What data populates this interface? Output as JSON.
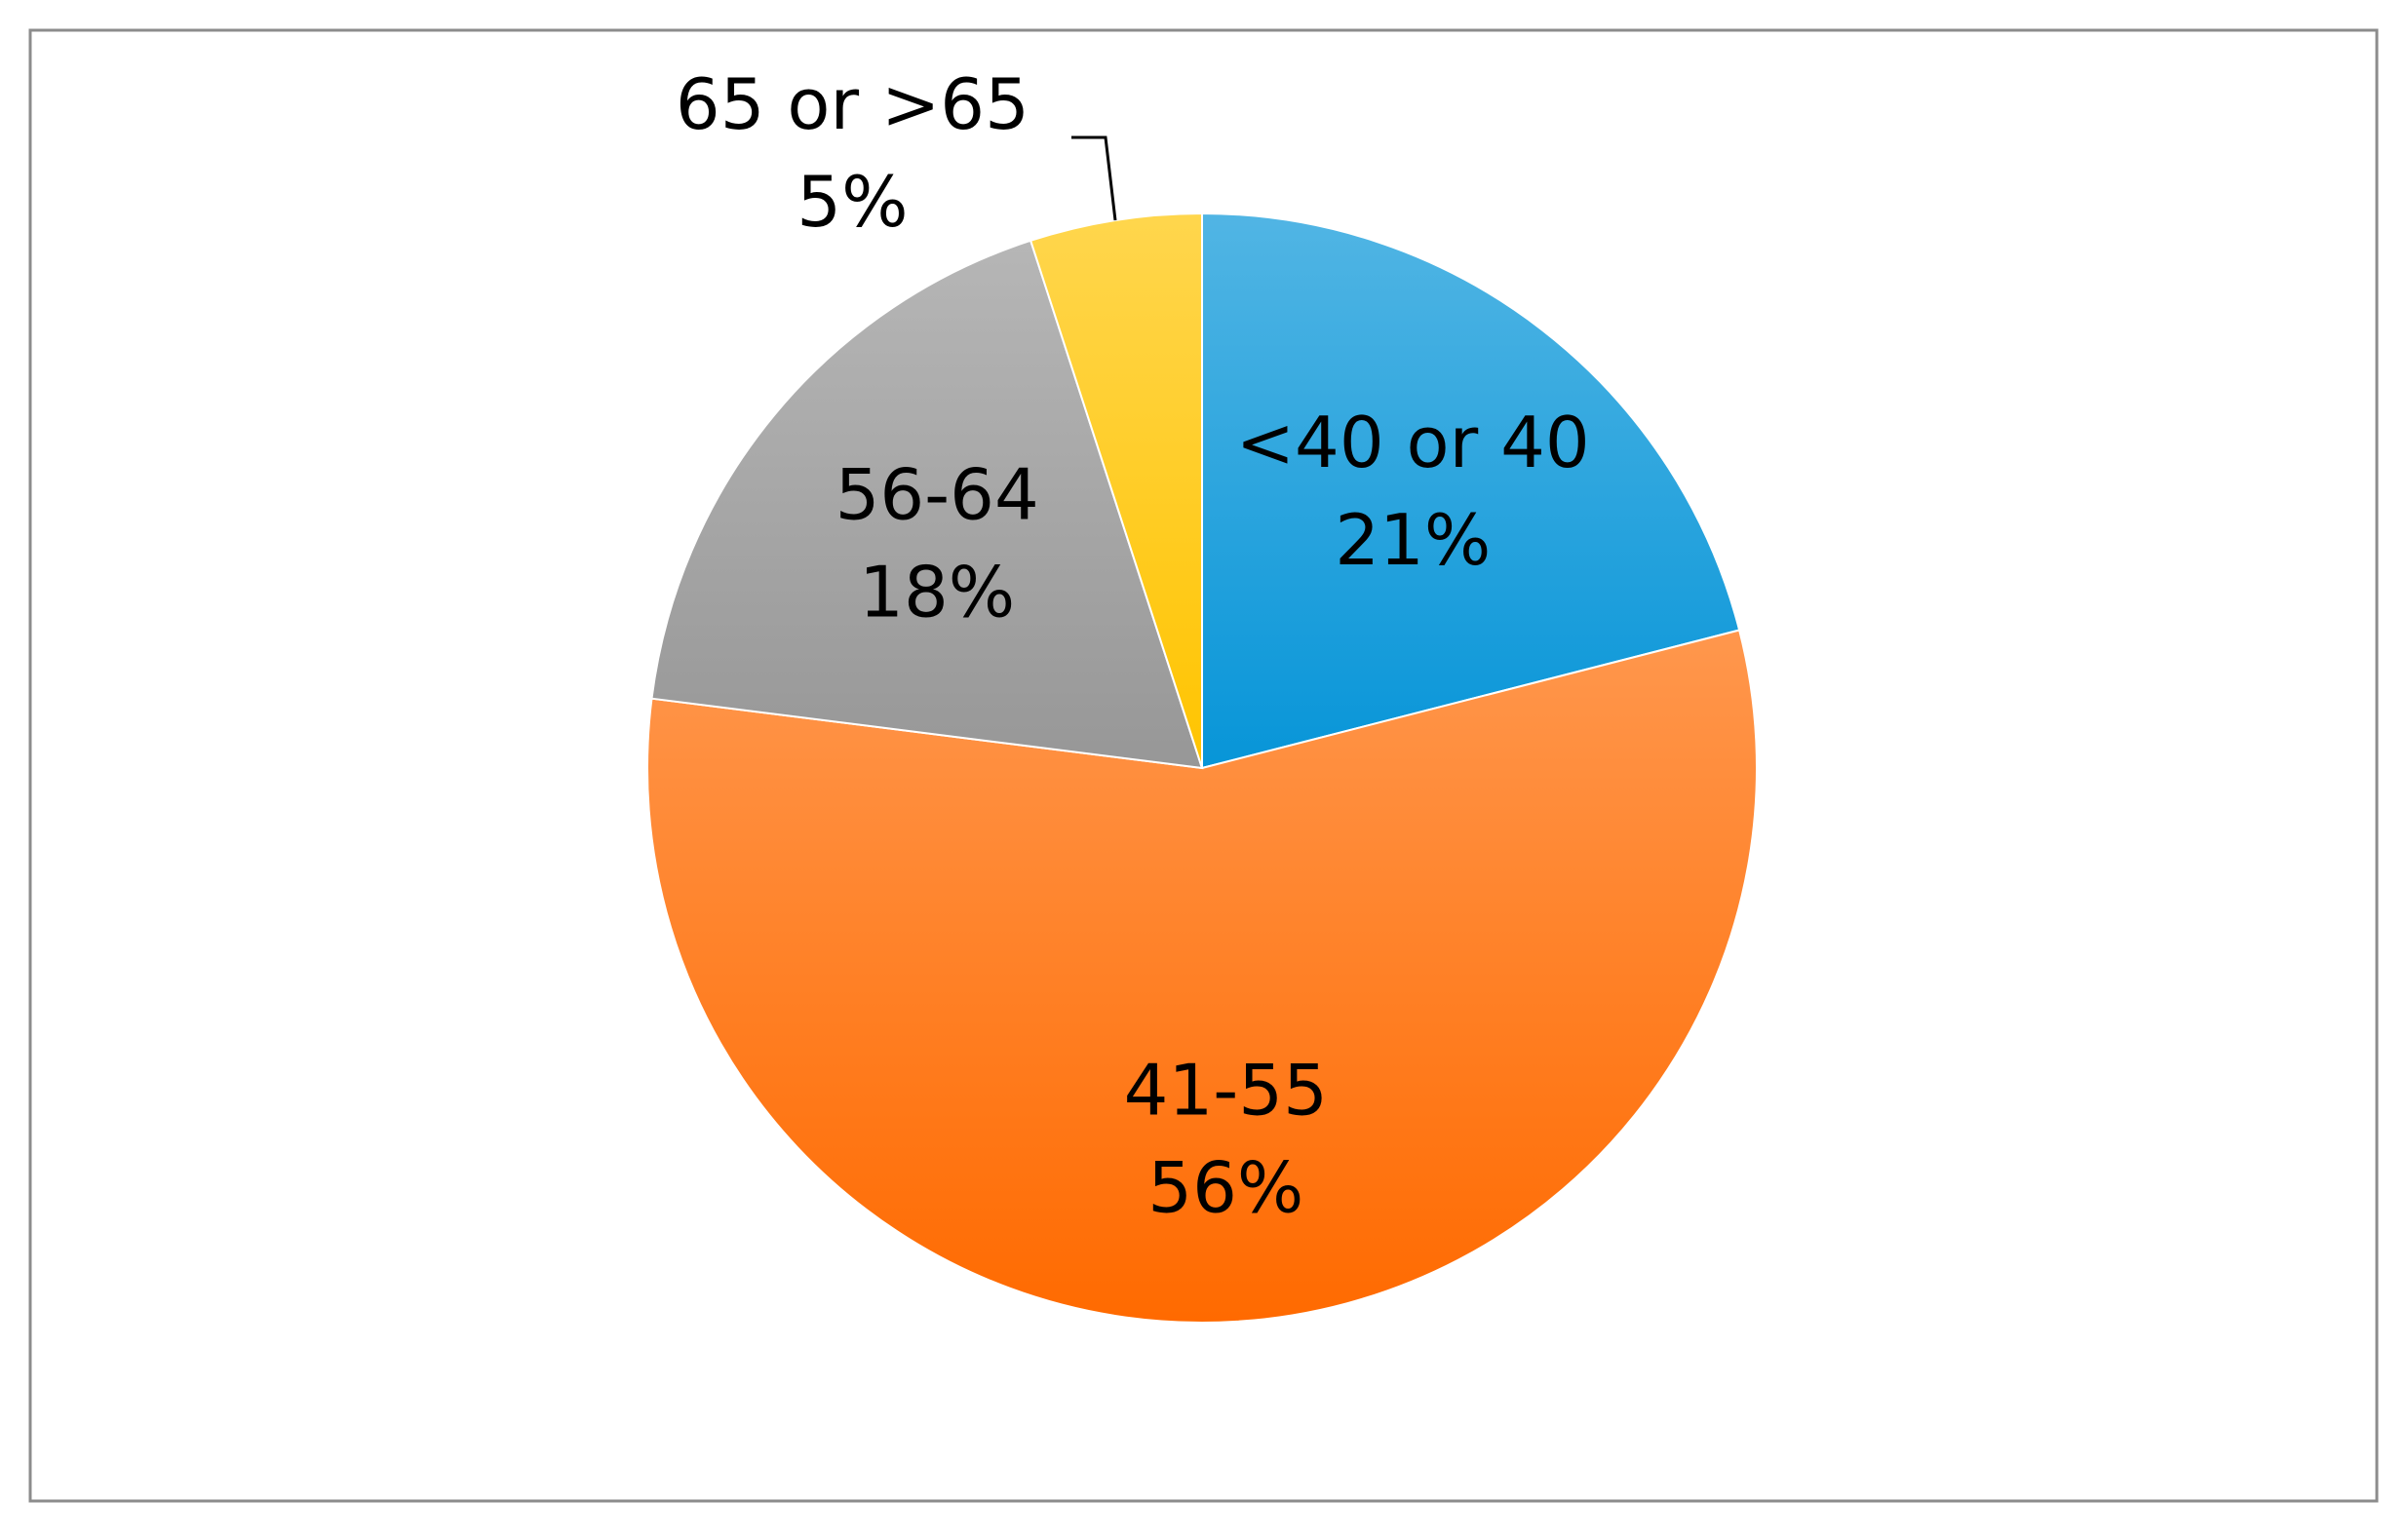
{
  "chart_data": {
    "type": "pie",
    "categories": [
      "<40 or 40",
      "41-55",
      "56-64",
      "65 or >65"
    ],
    "values": [
      21,
      56,
      18,
      5
    ],
    "value_labels": [
      "21%",
      "56%",
      "18%",
      "5%"
    ],
    "colors": [
      "#0795d8",
      "#ff6a00",
      "#979797",
      "#ffc400"
    ]
  }
}
